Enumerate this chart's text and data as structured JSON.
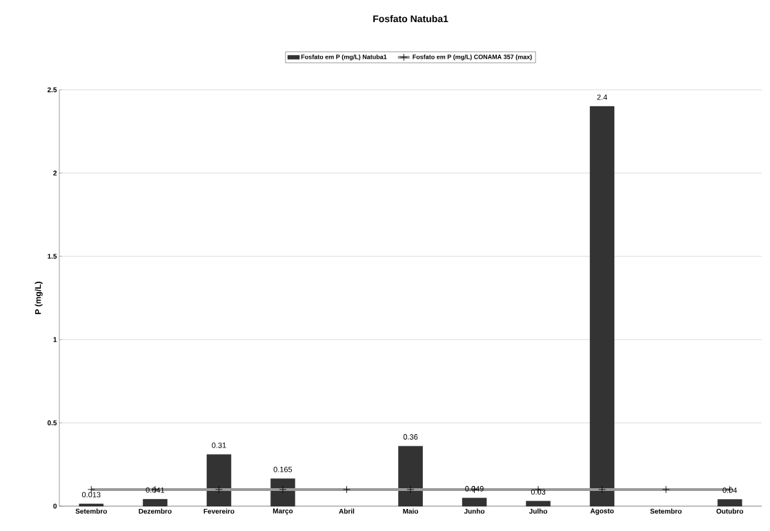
{
  "chart_data": {
    "type": "bar",
    "title": "Fosfato Natuba1",
    "ylabel": "P (mg/L)",
    "categories": [
      "Setembro",
      "Dezembro",
      "Fevereiro",
      "Março",
      "Abril",
      "Maio",
      "Junho",
      "Julho",
      "Agosto",
      "Setembro",
      "Outubro"
    ],
    "series": [
      {
        "name": "Fosfato em P (mg/L) Natuba1",
        "color": "#333333",
        "values": [
          0.013,
          0.041,
          0.31,
          0.165,
          null,
          0.36,
          0.049,
          0.03,
          2.4,
          null,
          0.04
        ],
        "value_labels": [
          "0.013",
          "0.041",
          "0.31",
          "0.165",
          null,
          "0.36",
          "0.049",
          "0.03",
          "2.4",
          null,
          "0.04"
        ]
      },
      {
        "name": "Fosfato em P (mg/L) CONAMA 357 (max)",
        "type": "line",
        "color": "#999999",
        "marker": "cross",
        "values": [
          0.1,
          0.1,
          0.1,
          0.1,
          0.1,
          0.1,
          0.1,
          0.1,
          0.1,
          0.1,
          0.1
        ]
      }
    ],
    "ylim": [
      0,
      2.5
    ],
    "yticks": [
      0,
      0.5,
      1,
      1.5,
      2,
      2.5
    ],
    "grid": "y",
    "legend": "top"
  }
}
